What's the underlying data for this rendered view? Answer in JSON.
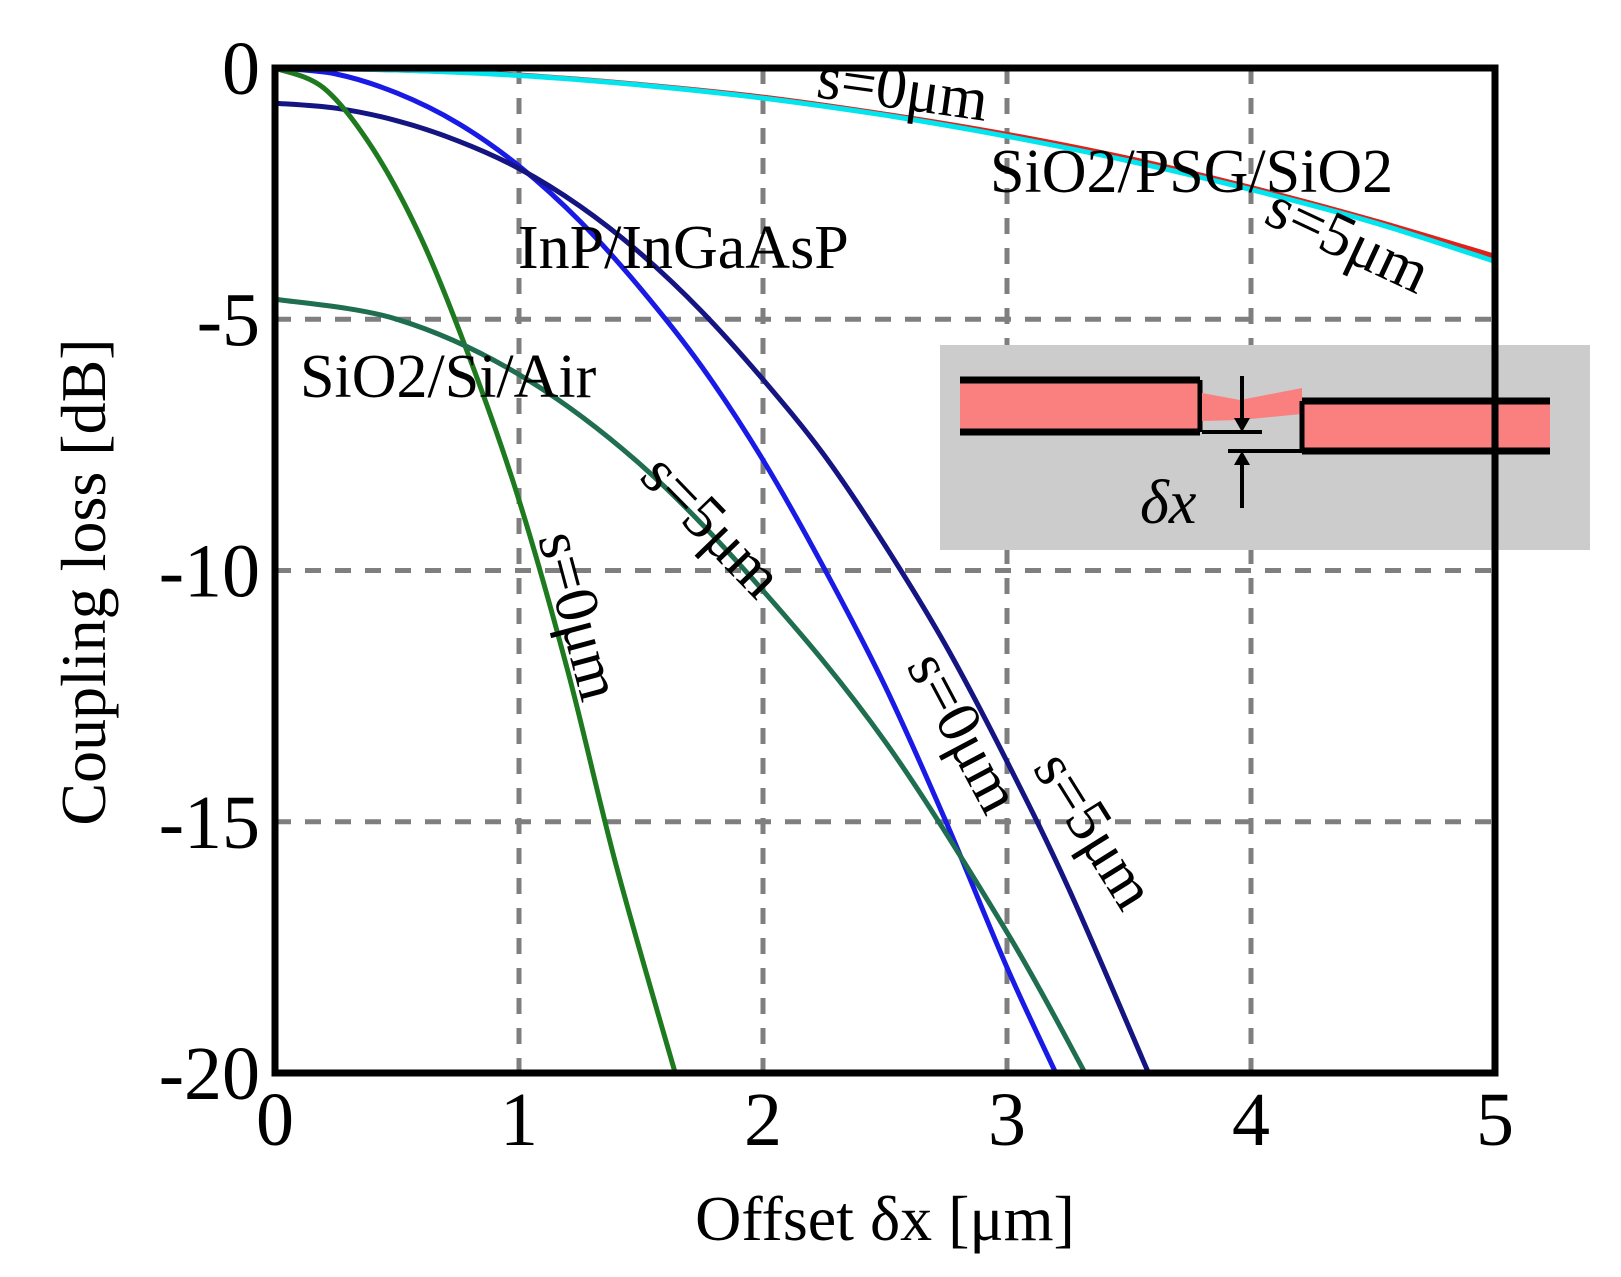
{
  "chart_data": {
    "type": "line",
    "xlabel": "Offset  δx [μm]",
    "ylabel": "Coupling loss [dB]",
    "xlim": [
      0,
      5
    ],
    "ylim": [
      -20,
      0
    ],
    "xticks": [
      "0",
      "1",
      "2",
      "3",
      "4",
      "5"
    ],
    "yticks": [
      "0",
      "-5",
      "-10",
      "-15",
      "-20"
    ],
    "grid": true,
    "series": [
      {
        "name": "SiO2/PSG/SiO2 s=0μm",
        "color": "#e0201a",
        "x": [
          0,
          0.5,
          1,
          1.5,
          2,
          2.5,
          3,
          3.5,
          4,
          4.5,
          5
        ],
        "y": [
          0,
          -0.04,
          -0.14,
          -0.33,
          -0.58,
          -0.92,
          -1.32,
          -1.8,
          -2.38,
          -3.03,
          -3.75
        ]
      },
      {
        "name": "SiO2/PSG/SiO2 s=5μm",
        "color": "#00e5ee",
        "x": [
          0,
          0.5,
          1,
          1.5,
          2,
          2.5,
          3,
          3.5,
          4,
          4.5,
          5
        ],
        "y": [
          0,
          -0.04,
          -0.15,
          -0.34,
          -0.6,
          -0.94,
          -1.36,
          -1.85,
          -2.42,
          -3.07,
          -3.85
        ]
      },
      {
        "name": "InP/InGaAsP s=0μm",
        "color": "#1a1ae6",
        "x": [
          0,
          0.25,
          0.5,
          0.75,
          1,
          1.25,
          1.5,
          1.75,
          2,
          2.25,
          2.5,
          2.75,
          3,
          3.2
        ],
        "y": [
          0,
          -0.12,
          -0.5,
          -1.1,
          -1.95,
          -3.05,
          -4.4,
          -5.95,
          -7.8,
          -9.95,
          -12.3,
          -15.0,
          -17.9,
          -20
        ]
      },
      {
        "name": "InP/InGaAsP s=5μm",
        "color": "#141482",
        "x": [
          0,
          0.25,
          0.5,
          0.75,
          1,
          1.25,
          1.5,
          1.75,
          2,
          2.25,
          2.5,
          2.75,
          3,
          3.25,
          3.58
        ],
        "y": [
          -0.7,
          -0.8,
          -1.05,
          -1.45,
          -2.0,
          -2.75,
          -3.7,
          -4.85,
          -6.2,
          -7.7,
          -9.5,
          -11.5,
          -13.8,
          -16.3,
          -20
        ]
      },
      {
        "name": "SiO2/Si/Air s=0μm",
        "color": "#1e7a1e",
        "x": [
          0,
          0.2,
          0.4,
          0.6,
          0.8,
          1.0,
          1.2,
          1.4,
          1.64
        ],
        "y": [
          0,
          -0.4,
          -1.6,
          -3.4,
          -5.8,
          -8.6,
          -12.0,
          -15.9,
          -20
        ]
      },
      {
        "name": "SiO2/Si/Air s=5μm",
        "color": "#1f6e50",
        "x": [
          0,
          0.5,
          1,
          1.5,
          2,
          2.5,
          3,
          3.32
        ],
        "y": [
          -4.6,
          -5.0,
          -6.1,
          -7.9,
          -10.4,
          -13.4,
          -17.2,
          -20
        ]
      }
    ],
    "annotations": {
      "psg_label": "SiO2/PSG/SiO2",
      "inp_label": "InP/InGaAsP",
      "air_label": "SiO2/Si/Air",
      "psg_s0": "s=0μm",
      "psg_s5": "s=5μm",
      "air_s0": "s=0μm",
      "air_s5": "s=5μm",
      "inp_s0": "s=0μm",
      "inp_s5": "s=5μm"
    },
    "inset": {
      "label": "δx",
      "background": "#cccccc",
      "waveguide_color": "#fa8080"
    }
  }
}
